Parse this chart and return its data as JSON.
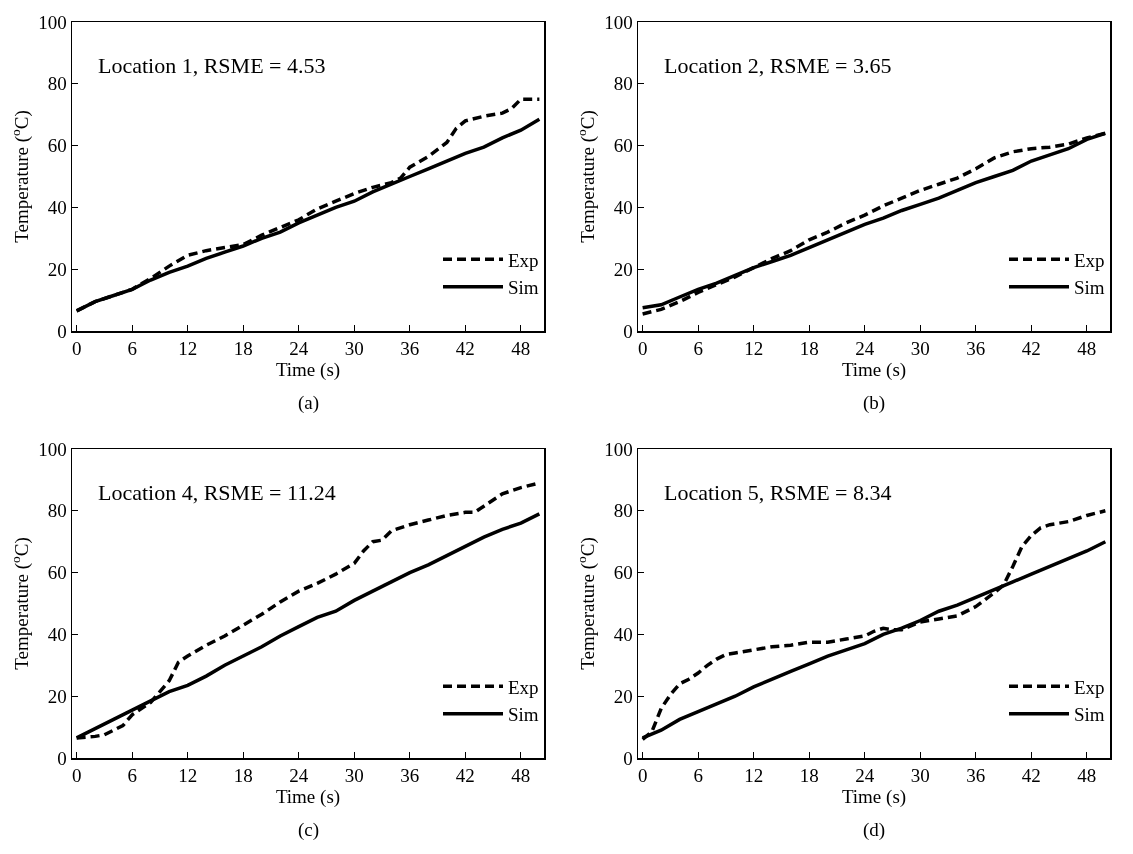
{
  "chart_data": [
    {
      "type": "line",
      "xlabel": "Time (s)",
      "ylabel": "Temperature ($^{o}$C)",
      "annotations": [
        "Location 1, RSME = 4.53",
        "(a)"
      ],
      "legend": "bottom right",
      "grid": false,
      "marker": "none",
      "xlim": [
        -0.5,
        50.5
      ],
      "xticks": [
        0,
        6,
        12,
        18,
        24,
        30,
        36,
        42,
        48
      ],
      "ylim": [
        0,
        100
      ],
      "yticks": [
        0,
        20,
        40,
        60,
        80,
        100
      ],
      "series": [
        {
          "name": "Exp",
          "color": "#000000",
          "line_style": "dashed",
          "x": [
            0,
            2,
            4,
            6,
            8,
            10,
            12,
            14,
            16,
            18,
            20,
            22,
            24,
            26,
            28,
            30,
            32,
            34,
            35,
            36,
            38,
            40,
            41,
            42,
            44,
            46,
            47,
            48,
            50
          ],
          "values": [
            6.5,
            9.5,
            11.5,
            13.5,
            17,
            21,
            24.5,
            26,
            27,
            28,
            31,
            33.5,
            36,
            39.5,
            42,
            44.5,
            46.5,
            48,
            49.5,
            53,
            56.5,
            61,
            65.5,
            68,
            69.5,
            70.5,
            72,
            75,
            75
          ]
        },
        {
          "name": "Sim",
          "color": "#000000",
          "line_style": "solid",
          "x": [
            0,
            2,
            4,
            6,
            8,
            10,
            12,
            14,
            16,
            18,
            20,
            22,
            24,
            26,
            28,
            30,
            32,
            34,
            36,
            38,
            40,
            42,
            44,
            46,
            48,
            50
          ],
          "values": [
            6.5,
            9.5,
            11.5,
            13.5,
            16.5,
            19,
            21,
            23.5,
            25.5,
            27.5,
            30,
            32,
            35,
            37.5,
            40,
            42,
            45,
            47.5,
            50,
            52.5,
            55,
            57.5,
            59.5,
            62.5,
            65,
            68.5
          ]
        }
      ]
    },
    {
      "type": "line",
      "xlabel": "Time (s)",
      "ylabel": "Temperature ($^{o}$C)",
      "annotations": [
        "Location 2, RSME = 3.65",
        "(b)"
      ],
      "legend": "bottom right",
      "grid": false,
      "marker": "none",
      "xlim": [
        -0.5,
        50.5
      ],
      "xticks": [
        0,
        6,
        12,
        18,
        24,
        30,
        36,
        42,
        48
      ],
      "ylim": [
        0,
        100
      ],
      "yticks": [
        0,
        20,
        40,
        60,
        80,
        100
      ],
      "series": [
        {
          "name": "Exp",
          "color": "#000000",
          "line_style": "dashed",
          "x": [
            0,
            2,
            4,
            6,
            8,
            10,
            12,
            14,
            16,
            18,
            20,
            22,
            24,
            26,
            28,
            30,
            32,
            34,
            36,
            38,
            40,
            42,
            44,
            46,
            48,
            50
          ],
          "values": [
            5.5,
            7,
            9.5,
            12.5,
            15,
            17.5,
            20.5,
            23.5,
            26,
            29.5,
            32,
            35,
            37.5,
            40.5,
            43,
            45.5,
            47.5,
            49.5,
            52.5,
            56,
            58,
            59,
            59.5,
            60.5,
            62.5,
            64
          ]
        },
        {
          "name": "Sim",
          "color": "#000000",
          "line_style": "solid",
          "x": [
            0,
            2,
            4,
            6,
            8,
            10,
            12,
            14,
            16,
            18,
            20,
            22,
            24,
            26,
            28,
            30,
            32,
            34,
            36,
            38,
            40,
            42,
            44,
            46,
            48,
            50
          ],
          "values": [
            7.5,
            8.5,
            11,
            13.5,
            15.5,
            18,
            20.5,
            22.5,
            24.5,
            27,
            29.5,
            32,
            34.5,
            36.5,
            39,
            41,
            43,
            45.5,
            48,
            50,
            52,
            55,
            57,
            59,
            62,
            64
          ]
        }
      ]
    },
    {
      "type": "line",
      "xlabel": "Time (s)",
      "ylabel": "Temperature ($^{o}$C)",
      "annotations": [
        "Location 4, RSME = 11.24",
        "(c)"
      ],
      "legend": "bottom right",
      "grid": false,
      "marker": "none",
      "xlim": [
        -0.5,
        50.5
      ],
      "xticks": [
        0,
        6,
        12,
        18,
        24,
        30,
        36,
        42,
        48
      ],
      "ylim": [
        0,
        100
      ],
      "yticks": [
        0,
        20,
        40,
        60,
        80,
        100
      ],
      "series": [
        {
          "name": "Exp",
          "color": "#000000",
          "line_style": "dashed",
          "x": [
            0,
            2,
            3,
            5,
            6,
            7,
            8,
            9,
            10,
            11,
            12,
            14,
            16,
            18,
            20,
            22,
            24,
            26,
            28,
            30,
            31,
            32,
            33,
            34,
            36,
            38,
            40,
            42,
            43,
            44,
            46,
            48,
            50
          ],
          "values": [
            6.5,
            7,
            7.5,
            10.5,
            14,
            16,
            18,
            21.5,
            25,
            31,
            33,
            36.5,
            39.5,
            43,
            46.5,
            50.5,
            54,
            56.5,
            59.5,
            63,
            67,
            70,
            70.5,
            73.5,
            75.5,
            77,
            78.5,
            79.5,
            79.5,
            81.5,
            85.5,
            87.5,
            89
          ]
        },
        {
          "name": "Sim",
          "color": "#000000",
          "line_style": "solid",
          "x": [
            0,
            2,
            4,
            6,
            8,
            10,
            12,
            14,
            16,
            18,
            20,
            22,
            24,
            26,
            28,
            30,
            32,
            34,
            36,
            38,
            40,
            42,
            44,
            46,
            48,
            50
          ],
          "values": [
            6.5,
            9.5,
            12.5,
            15.5,
            18.5,
            21.5,
            23.5,
            26.5,
            30,
            33,
            36,
            39.5,
            42.5,
            45.5,
            47.5,
            51,
            54,
            57,
            60,
            62.5,
            65.5,
            68.5,
            71.5,
            74,
            76,
            79
          ]
        }
      ]
    },
    {
      "type": "line",
      "xlabel": "Time (s)",
      "ylabel": "Temperature ($^{o}$C)",
      "annotations": [
        "Location 5, RSME = 8.34",
        "(d)"
      ],
      "legend": "bottom right",
      "grid": false,
      "marker": "none",
      "xlim": [
        -0.5,
        50.5
      ],
      "xticks": [
        0,
        6,
        12,
        18,
        24,
        30,
        36,
        42,
        48
      ],
      "ylim": [
        0,
        100
      ],
      "yticks": [
        0,
        20,
        40,
        60,
        80,
        100
      ],
      "series": [
        {
          "name": "Exp",
          "color": "#000000",
          "line_style": "dashed",
          "x": [
            0,
            1,
            2,
            3,
            4,
            5,
            6,
            7,
            8,
            9,
            10,
            12,
            14,
            16,
            18,
            20,
            22,
            24,
            25,
            26,
            27,
            28,
            30,
            32,
            34,
            36,
            38,
            39,
            40,
            41,
            42,
            43,
            44,
            46,
            48,
            50
          ],
          "values": [
            6,
            8.5,
            16,
            20.5,
            24,
            25.5,
            27.5,
            30,
            32,
            33.5,
            34,
            35,
            36,
            36.5,
            37.5,
            37.5,
            38.5,
            39.5,
            41,
            42,
            41.5,
            41.5,
            44,
            45,
            46,
            49,
            53.5,
            56,
            62,
            68.5,
            72,
            74.5,
            75.5,
            76.5,
            78.5,
            80
          ]
        },
        {
          "name": "Sim",
          "color": "#000000",
          "line_style": "solid",
          "x": [
            0,
            2,
            4,
            6,
            8,
            10,
            12,
            14,
            16,
            18,
            20,
            22,
            24,
            26,
            28,
            30,
            32,
            34,
            36,
            38,
            40,
            42,
            44,
            46,
            48,
            50
          ],
          "values": [
            6.5,
            9,
            12.5,
            15,
            17.5,
            20,
            23,
            25.5,
            28,
            30.5,
            33,
            35,
            37,
            40,
            42,
            44.5,
            47.5,
            49.5,
            52,
            54.5,
            57,
            59.5,
            62,
            64.5,
            67,
            70
          ]
        }
      ]
    }
  ]
}
